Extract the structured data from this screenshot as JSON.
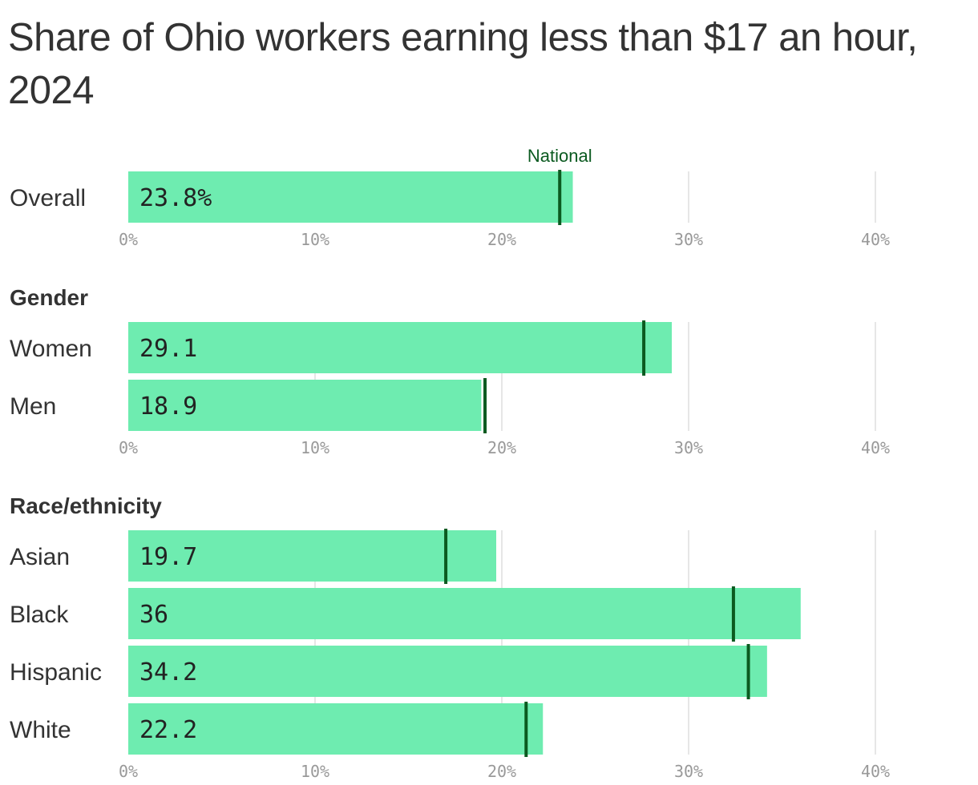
{
  "title": "Share of Ohio workers earning less than $17 an hour, 2024",
  "colors": {
    "bar": "#6EECB0",
    "national_marker": "#0B5A20",
    "national_label": "#0B5A20",
    "grid": "#dddddd",
    "tick_text": "#999999",
    "text": "#333333"
  },
  "chart_data": {
    "type": "bar",
    "orientation": "horizontal",
    "title": "Share of Ohio workers earning less than $17 an hour, 2024",
    "marker_label": "National",
    "xlim": [
      0,
      40
    ],
    "xticks": [
      0,
      10,
      20,
      30,
      40
    ],
    "xtick_labels": [
      "0%",
      "10%",
      "20%",
      "30%",
      "40%"
    ],
    "grid": true,
    "groups": [
      {
        "label": "",
        "categories": [
          "Overall"
        ],
        "values": [
          23.8
        ],
        "value_labels": [
          "23.8%"
        ],
        "national": [
          23.1
        ]
      },
      {
        "label": "Gender",
        "categories": [
          "Women",
          "Men"
        ],
        "values": [
          29.1,
          18.9
        ],
        "value_labels": [
          "29.1",
          "18.9"
        ],
        "national": [
          27.6,
          19.1
        ]
      },
      {
        "label": "Race/ethnicity",
        "categories": [
          "Asian",
          "Black",
          "Hispanic",
          "White"
        ],
        "values": [
          19.7,
          36,
          34.2,
          22.2
        ],
        "value_labels": [
          "19.7",
          "36",
          "34.2",
          "22.2"
        ],
        "national": [
          17.0,
          32.4,
          33.2,
          21.3
        ]
      }
    ]
  }
}
